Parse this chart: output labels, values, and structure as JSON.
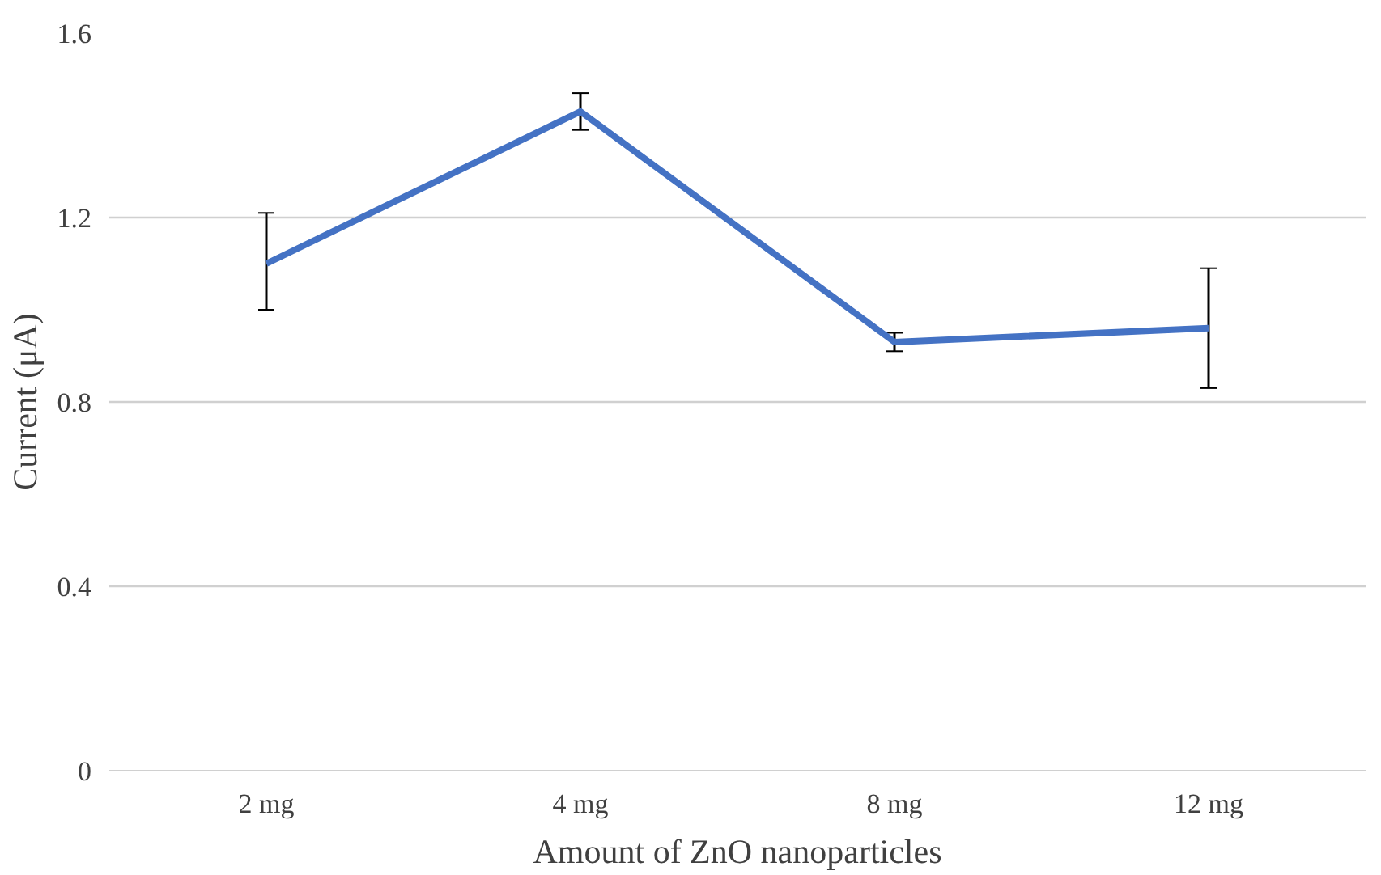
{
  "chart_data": {
    "type": "line",
    "xlabel": "Amount of ZnO nanoparticles",
    "ylabel": "Current (μA)",
    "categories": [
      "2 mg",
      "4 mg",
      "8 mg",
      "12 mg"
    ],
    "series": [
      {
        "color": "#4472c4",
        "values": [
          1.1,
          1.43,
          0.93,
          0.96
        ],
        "errors": [
          [
            1.0,
            1.21
          ],
          [
            1.39,
            1.47
          ],
          [
            0.91,
            0.95
          ],
          [
            0.83,
            1.09
          ]
        ]
      }
    ],
    "ylim": [
      0,
      1.6
    ],
    "yticks": [
      0,
      0.4,
      0.8,
      1.2,
      1.6
    ],
    "grid": "y",
    "marker": "none",
    "line_style": "solid"
  }
}
